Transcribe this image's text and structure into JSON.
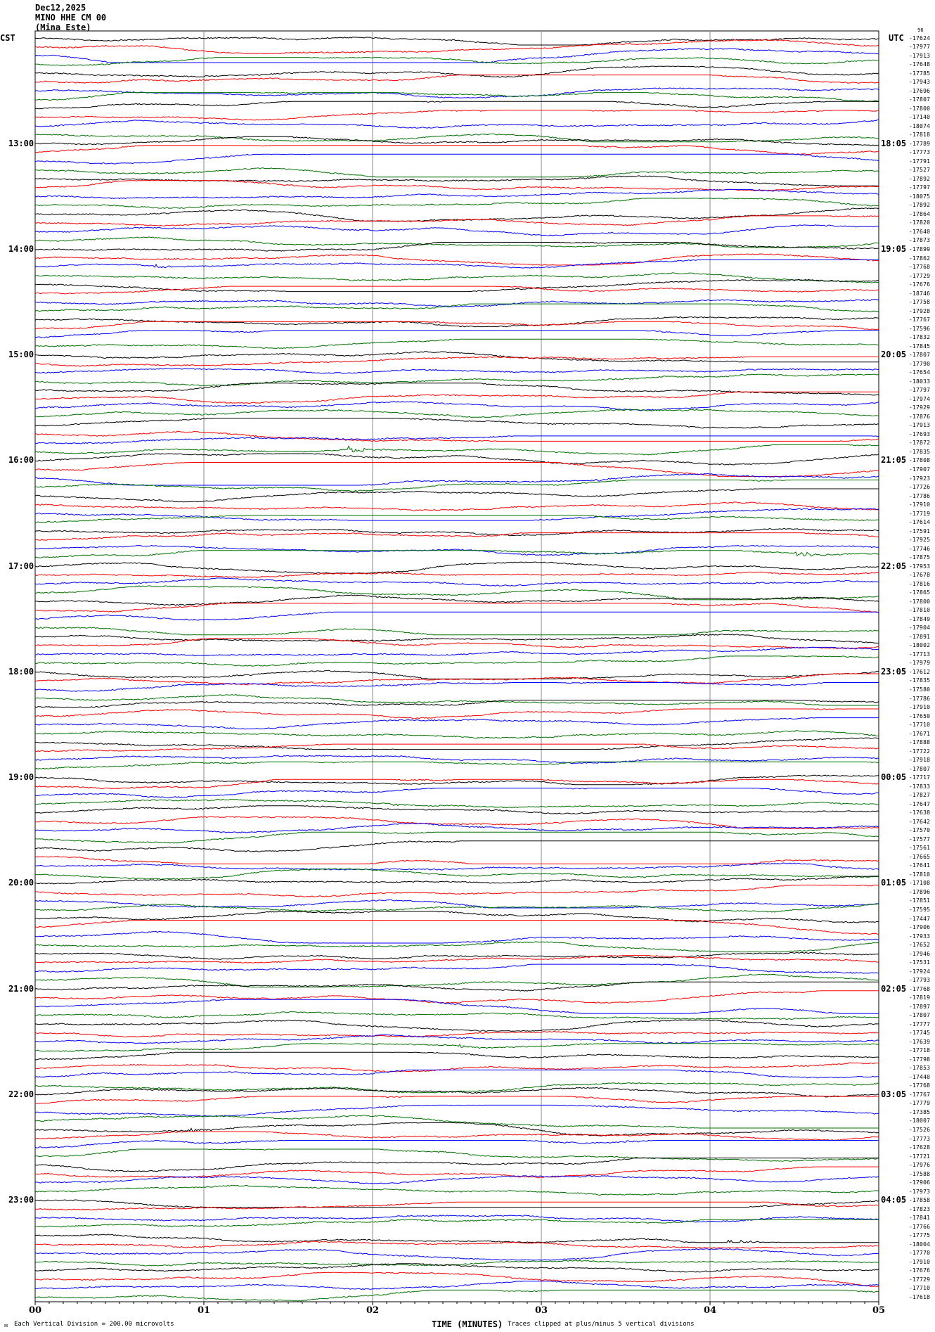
{
  "header": {
    "date": "Dec12,2025",
    "station": "MINO HHE CM 00",
    "location": "(Mina Este)"
  },
  "left_zone": "CST",
  "right_zone": "UTC",
  "top_overlap_label": "96",
  "footer": {
    "scale": "Each Vertical Division =  200.00 microvolts",
    "xlabel": "TIME (MINUTES)",
    "clip_note": "Traces clipped at plus/minus 5 vertical divisions"
  },
  "colors": {
    "trace_cycle": [
      "#000000",
      "#ff0000",
      "#0000ff",
      "#007000"
    ],
    "grid": "#888888"
  },
  "chart_data": {
    "type": "line",
    "title": "",
    "xlabel": "TIME (MINUTES)",
    "x_ticks": [
      "00",
      "01",
      "02",
      "03",
      "04",
      "05"
    ],
    "xlim": [
      0,
      5
    ],
    "rows_per_hour": 12,
    "left_hour_labels": [
      "13:00",
      "14:00",
      "15:00",
      "16:00",
      "17:00",
      "18:00",
      "19:00",
      "20:00",
      "21:00",
      "22:00",
      "23:00"
    ],
    "right_hour_labels": [
      "18:05",
      "19:05",
      "20:05",
      "21:05",
      "22:05",
      "23:05",
      "00:05",
      "01:05",
      "02:05",
      "03:05",
      "04:05"
    ],
    "row_offsets": [
      "-17624",
      "-17977",
      "-17913",
      "-17648",
      "-17785",
      "-17943",
      "-17696",
      "-17807",
      "-17800",
      "-17140",
      "-18074",
      "-17818",
      "-17789",
      "-17773",
      "-17791",
      "-17527",
      "-17892",
      "-17797",
      "-18075",
      "-17892",
      "-17864",
      "-17820",
      "-17640",
      "-17873",
      "-17899",
      "-17862",
      "-17768",
      "-17729",
      "-17676",
      "-18746",
      "-17758",
      "-17928",
      "-17767",
      "-17596",
      "-17832",
      "-17845",
      "-17807",
      "-17790",
      "-17654",
      "-18033",
      "-17797",
      "-17974",
      "-17929",
      "-17876",
      "-17913",
      "-17693",
      "-17872",
      "-17835",
      "-17808",
      "-17907",
      "-17923",
      "-17726",
      "-17786",
      "-17910",
      "-17719",
      "-17614",
      "-17591",
      "-17925",
      "-17746",
      "-17875",
      "-17953",
      "-17678",
      "-17816",
      "-17865",
      "-17800",
      "-17810",
      "-17849",
      "-17904",
      "-17891",
      "-18002",
      "-17713",
      "-17979",
      "-17612",
      "-17835",
      "-17580",
      "-17786",
      "-17910",
      "-17650",
      "-17710",
      "-17671",
      "-17888",
      "-17722",
      "-17918",
      "-17807",
      "-17717",
      "-17833",
      "-17827",
      "-17647",
      "-17638",
      "-17642",
      "-17570",
      "-17577",
      "-17561",
      "-17665",
      "-17641",
      "-17810",
      "-17108",
      "-17896",
      "-17851",
      "-17595",
      "-17447",
      "-17906",
      "-17933",
      "-17652",
      "-17946",
      "-17531",
      "-17924",
      "-17793",
      "-17768",
      "-17819",
      "-17897",
      "-17807",
      "-17777",
      "-17745",
      "-17639",
      "-17718",
      "-17798",
      "-17853",
      "-17440",
      "-17768",
      "-17767",
      "-17779",
      "-17385",
      "-18007",
      "-17526",
      "-17773",
      "-17628",
      "-17721",
      "-17976",
      "-17588",
      "-17906",
      "-17973",
      "-17858",
      "-17823",
      "-17841",
      "-17766",
      "-17775",
      "-18004",
      "-17770",
      "-17910",
      "-17676",
      "-17729",
      "-17710",
      "-17618"
    ]
  }
}
